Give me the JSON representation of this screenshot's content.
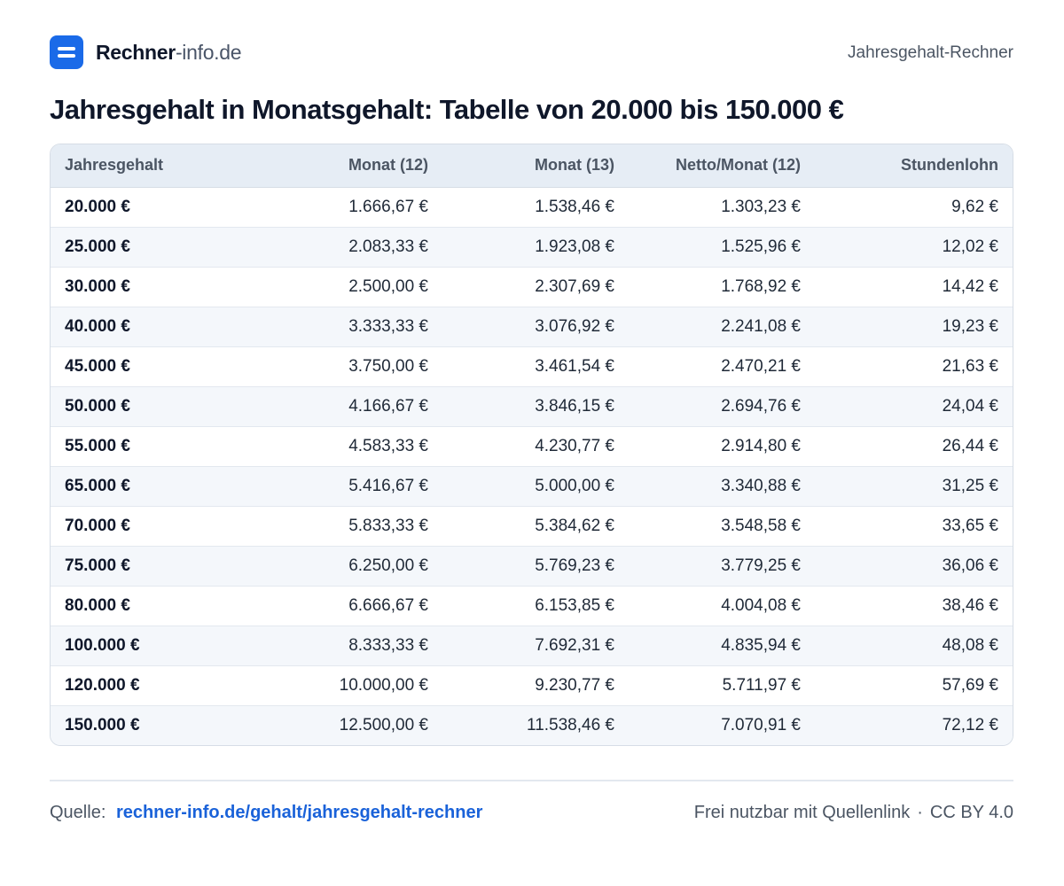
{
  "header": {
    "brand": "Rechner",
    "domain": "-info.de",
    "right_label": "Jahresgehalt-Rechner",
    "logo_icon": "equals-icon"
  },
  "title": "Jahresgehalt in Monatsgehalt: Tabelle von 20.000 bis 150.000 €",
  "table": {
    "columns": [
      "Jahresgehalt",
      "Monat (12)",
      "Monat (13)",
      "Netto/Monat (12)",
      "Stundenlohn"
    ],
    "rows": [
      [
        "20.000 €",
        "1.666,67 €",
        "1.538,46 €",
        "1.303,23 €",
        "9,62 €"
      ],
      [
        "25.000 €",
        "2.083,33 €",
        "1.923,08 €",
        "1.525,96 €",
        "12,02 €"
      ],
      [
        "30.000 €",
        "2.500,00 €",
        "2.307,69 €",
        "1.768,92 €",
        "14,42 €"
      ],
      [
        "40.000 €",
        "3.333,33 €",
        "3.076,92 €",
        "2.241,08 €",
        "19,23 €"
      ],
      [
        "45.000 €",
        "3.750,00 €",
        "3.461,54 €",
        "2.470,21 €",
        "21,63 €"
      ],
      [
        "50.000 €",
        "4.166,67 €",
        "3.846,15 €",
        "2.694,76 €",
        "24,04 €"
      ],
      [
        "55.000 €",
        "4.583,33 €",
        "4.230,77 €",
        "2.914,80 €",
        "26,44 €"
      ],
      [
        "65.000 €",
        "5.416,67 €",
        "5.000,00 €",
        "3.340,88 €",
        "31,25 €"
      ],
      [
        "70.000 €",
        "5.833,33 €",
        "5.384,62 €",
        "3.548,58 €",
        "33,65 €"
      ],
      [
        "75.000 €",
        "6.250,00 €",
        "5.769,23 €",
        "3.779,25 €",
        "36,06 €"
      ],
      [
        "80.000 €",
        "6.666,67 €",
        "6.153,85 €",
        "4.004,08 €",
        "38,46 €"
      ],
      [
        "100.000 €",
        "8.333,33 €",
        "7.692,31 €",
        "4.835,94 €",
        "48,08 €"
      ],
      [
        "120.000 €",
        "10.000,00 €",
        "9.230,77 €",
        "5.711,97 €",
        "57,69 €"
      ],
      [
        "150.000 €",
        "12.500,00 €",
        "11.538,46 €",
        "7.070,91 €",
        "72,12 €"
      ]
    ]
  },
  "footer": {
    "source_label": "Quelle:",
    "source_link": "rechner-info.de/gehalt/jahresgehalt-rechner",
    "license_text": "Frei nutzbar mit Quellenlink",
    "separator": "·",
    "license_name": "CC BY 4.0"
  },
  "colors": {
    "accent": "#1a6ae8",
    "link": "#1a62d9",
    "header_bg": "#e6edf5",
    "zebra_bg": "#f4f7fb"
  }
}
